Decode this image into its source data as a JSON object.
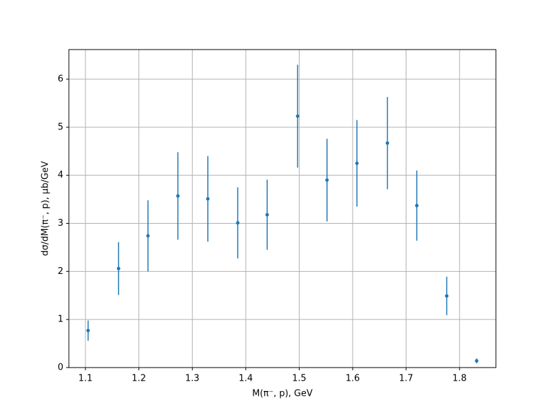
{
  "chart_data": {
    "type": "errorbar",
    "x_label": "M(π⁻, p), GeV",
    "y_label": "dσ/dM(π⁻, p), μb/GeV",
    "x": [
      1.105,
      1.162,
      1.217,
      1.273,
      1.329,
      1.385,
      1.44,
      1.497,
      1.552,
      1.608,
      1.665,
      1.72,
      1.776,
      1.832
    ],
    "series": [
      {
        "color": "#1f77b4",
        "values": [
          0.77,
          2.06,
          2.74,
          3.57,
          3.51,
          3.01,
          3.18,
          5.23,
          3.9,
          4.25,
          4.67,
          3.37,
          1.49,
          0.14
        ],
        "errors": [
          0.21,
          0.55,
          0.74,
          0.91,
          0.89,
          0.74,
          0.73,
          1.07,
          0.86,
          0.9,
          0.96,
          0.73,
          0.4,
          0.05
        ]
      }
    ],
    "xlim": [
      1.069,
      1.868
    ],
    "ylim": [
      0,
      6.616
    ],
    "xticks": [
      1.1,
      1.2,
      1.3,
      1.4,
      1.5,
      1.6,
      1.7,
      1.8
    ],
    "yticks": [
      0,
      1,
      2,
      3,
      4,
      5,
      6
    ],
    "grid": true
  }
}
